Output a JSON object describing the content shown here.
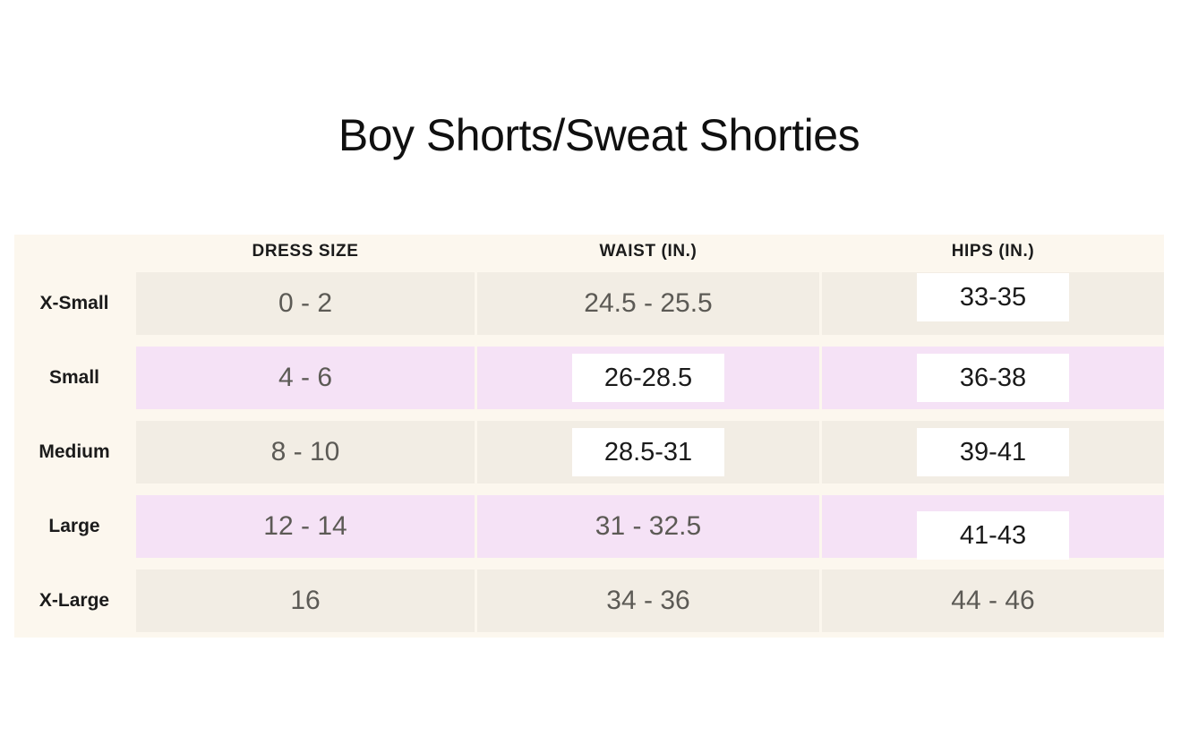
{
  "title": "Boy Shorts/Sweat Shorties",
  "chart_data": {
    "type": "table",
    "title": "Boy Shorts/Sweat Shorties",
    "columns": [
      "",
      "DRESS SIZE",
      "WAIST (IN.)",
      "HIPS (IN.)"
    ],
    "rows": [
      {
        "label": "X-Small",
        "cells": [
          {
            "text": "0 - 2",
            "boxed": false
          },
          {
            "text": "24.5 - 25.5",
            "boxed": false
          },
          {
            "text": "33-35",
            "boxed": true
          }
        ]
      },
      {
        "label": "Small",
        "cells": [
          {
            "text": "4 - 6",
            "boxed": false
          },
          {
            "text": "26-28.5",
            "boxed": true
          },
          {
            "text": "36-38",
            "boxed": true
          }
        ]
      },
      {
        "label": "Medium",
        "cells": [
          {
            "text": "8 - 10",
            "boxed": false
          },
          {
            "text": "28.5-31",
            "boxed": true
          },
          {
            "text": "39-41",
            "boxed": true
          }
        ]
      },
      {
        "label": "Large",
        "cells": [
          {
            "text": "12 - 14",
            "boxed": false
          },
          {
            "text": "31 - 32.5",
            "boxed": false
          },
          {
            "text": "41-43",
            "boxed": true
          }
        ]
      },
      {
        "label": "X-Large",
        "cells": [
          {
            "text": "16",
            "boxed": false
          },
          {
            "text": "34 - 36",
            "boxed": false
          },
          {
            "text": "44 - 46",
            "boxed": false
          }
        ]
      }
    ]
  },
  "colors": {
    "page_background": "#ffffff",
    "table_cream": "#fcf7ee",
    "row_beige": "#f2ede4",
    "row_pink": "#f5e2f6",
    "overlay_box": "#ffffff",
    "text_dark": "#1b1b1b",
    "text_gray": "#5c5a55"
  }
}
